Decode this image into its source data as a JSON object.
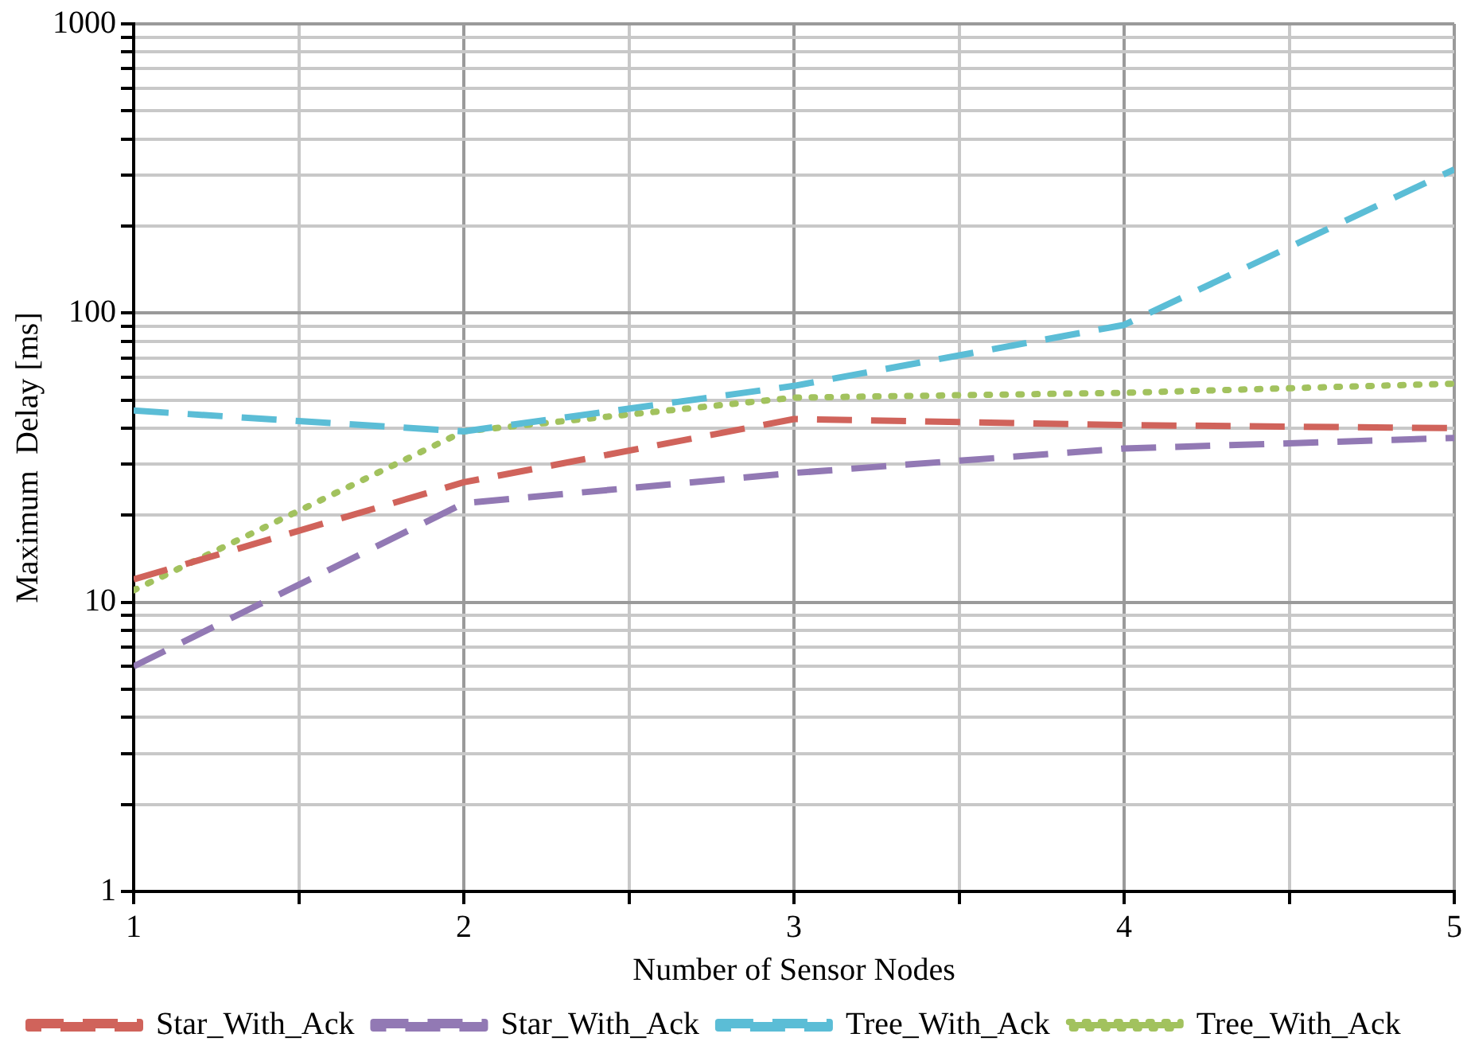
{
  "chart_data": {
    "type": "line",
    "xlabel": "Number of Sensor Nodes",
    "ylabel": "Maximum  Delay [ms]",
    "x": [
      1,
      2,
      3,
      4,
      5
    ],
    "log": "y",
    "grid": true,
    "legend": "bottom",
    "marker": "none",
    "xlim": [
      1,
      5
    ],
    "xticks": [
      1,
      {
        "value": 1.5,
        "label": null
      },
      2,
      {
        "value": 2.5,
        "label": null
      },
      3,
      {
        "value": 3.5,
        "label": null
      },
      4,
      {
        "value": 4.5,
        "label": null
      },
      5
    ],
    "ylim": [
      1,
      1000
    ],
    "yticks": [
      1,
      {
        "value": 2,
        "label": null
      },
      {
        "value": 3,
        "label": null
      },
      {
        "value": 4,
        "label": null
      },
      {
        "value": 5,
        "label": null
      },
      {
        "value": 6,
        "label": null
      },
      {
        "value": 7,
        "label": null
      },
      {
        "value": 8,
        "label": null
      },
      {
        "value": 9,
        "label": null
      },
      10,
      {
        "value": 20,
        "label": null
      },
      {
        "value": 30,
        "label": null
      },
      {
        "value": 40,
        "label": null
      },
      {
        "value": 50,
        "label": null
      },
      {
        "value": 60,
        "label": null
      },
      {
        "value": 70,
        "label": null
      },
      {
        "value": 80,
        "label": null
      },
      {
        "value": 90,
        "label": null
      },
      100,
      {
        "value": 200,
        "label": null
      },
      {
        "value": 300,
        "label": null
      },
      {
        "value": 400,
        "label": null
      },
      {
        "value": 500,
        "label": null
      },
      {
        "value": 600,
        "label": null
      },
      {
        "value": 700,
        "label": null
      },
      {
        "value": 800,
        "label": null
      },
      {
        "value": 900,
        "label": null
      },
      1000
    ],
    "series": [
      {
        "name": "Star_With_Ack",
        "color": "#d0635b",
        "line_style": "dashed",
        "values": [
          12,
          26,
          43,
          41,
          40
        ]
      },
      {
        "name": "Star_With_Ack",
        "color": "#9279b4",
        "line_style": "dashed",
        "values": [
          6,
          22,
          28,
          34,
          37
        ]
      },
      {
        "name": "Tree_With_Ack",
        "color": "#5bbdd6",
        "line_style": "dashed",
        "values": [
          46,
          39,
          56,
          91,
          314
        ]
      },
      {
        "name": "Tree_With_Ack",
        "color": "#a2c25e",
        "line_style": "dotted",
        "values": [
          11,
          39,
          51,
          53,
          57
        ]
      }
    ]
  }
}
